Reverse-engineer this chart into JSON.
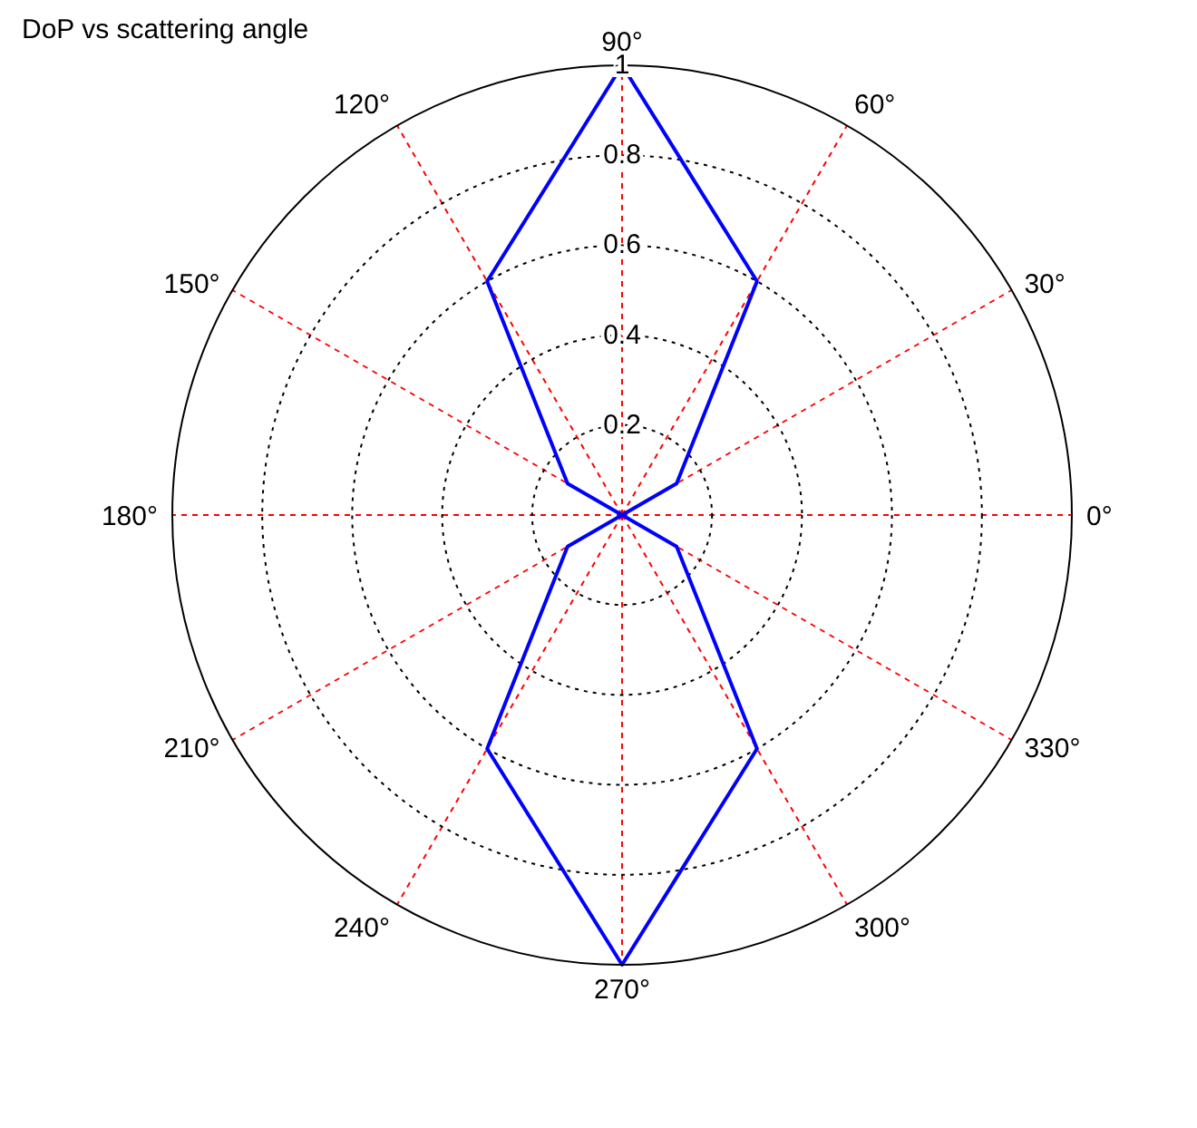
{
  "chart_data": {
    "type": "radar",
    "title": "DoP vs scattering angle",
    "categories": [
      "90°",
      "60°",
      "30°",
      "0°",
      "330°",
      "300°",
      "270°",
      "240°",
      "210°",
      "180°",
      "150°",
      "120°"
    ],
    "series": [
      {
        "color": "#0000ff",
        "values": [
          1,
          0.6,
          0.14,
          0,
          0.14,
          0.6,
          1,
          0.6,
          0.14,
          0,
          0.14,
          0.6
        ]
      }
    ],
    "ylim": [
      0,
      1
    ],
    "yticks": [
      0.2,
      0.4,
      0.6,
      0.8,
      1
    ],
    "grid": true,
    "line_style": "solid",
    "marker": "none"
  }
}
